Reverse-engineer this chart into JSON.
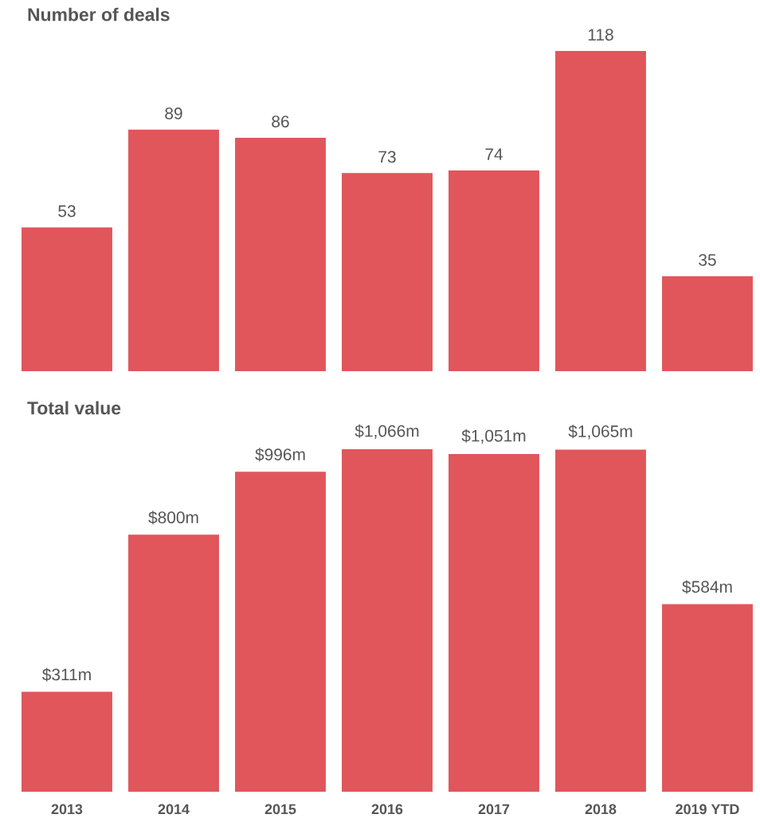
{
  "chart_data": [
    {
      "type": "bar",
      "title": "Number of deals",
      "categories": [
        null,
        null,
        null,
        null,
        null,
        null,
        null
      ],
      "values": [
        53,
        89,
        86,
        73,
        74,
        118,
        35
      ],
      "color": "#e0565b",
      "data_labels": true,
      "tick_labels": false
    },
    {
      "type": "bar",
      "title": "Total value",
      "categories": [
        "2013",
        "2014",
        "2015",
        "2016",
        "2017",
        "2018",
        "2019 YTD"
      ],
      "values": [
        311,
        800,
        996,
        1066,
        1051,
        1065,
        584
      ],
      "value_labels": [
        "$311m",
        "$800m",
        "$996m",
        "$1,066m",
        "$1,051m",
        "$1,065m",
        "$584m"
      ],
      "color": "#e0565b",
      "tick_labels": "x"
    }
  ]
}
